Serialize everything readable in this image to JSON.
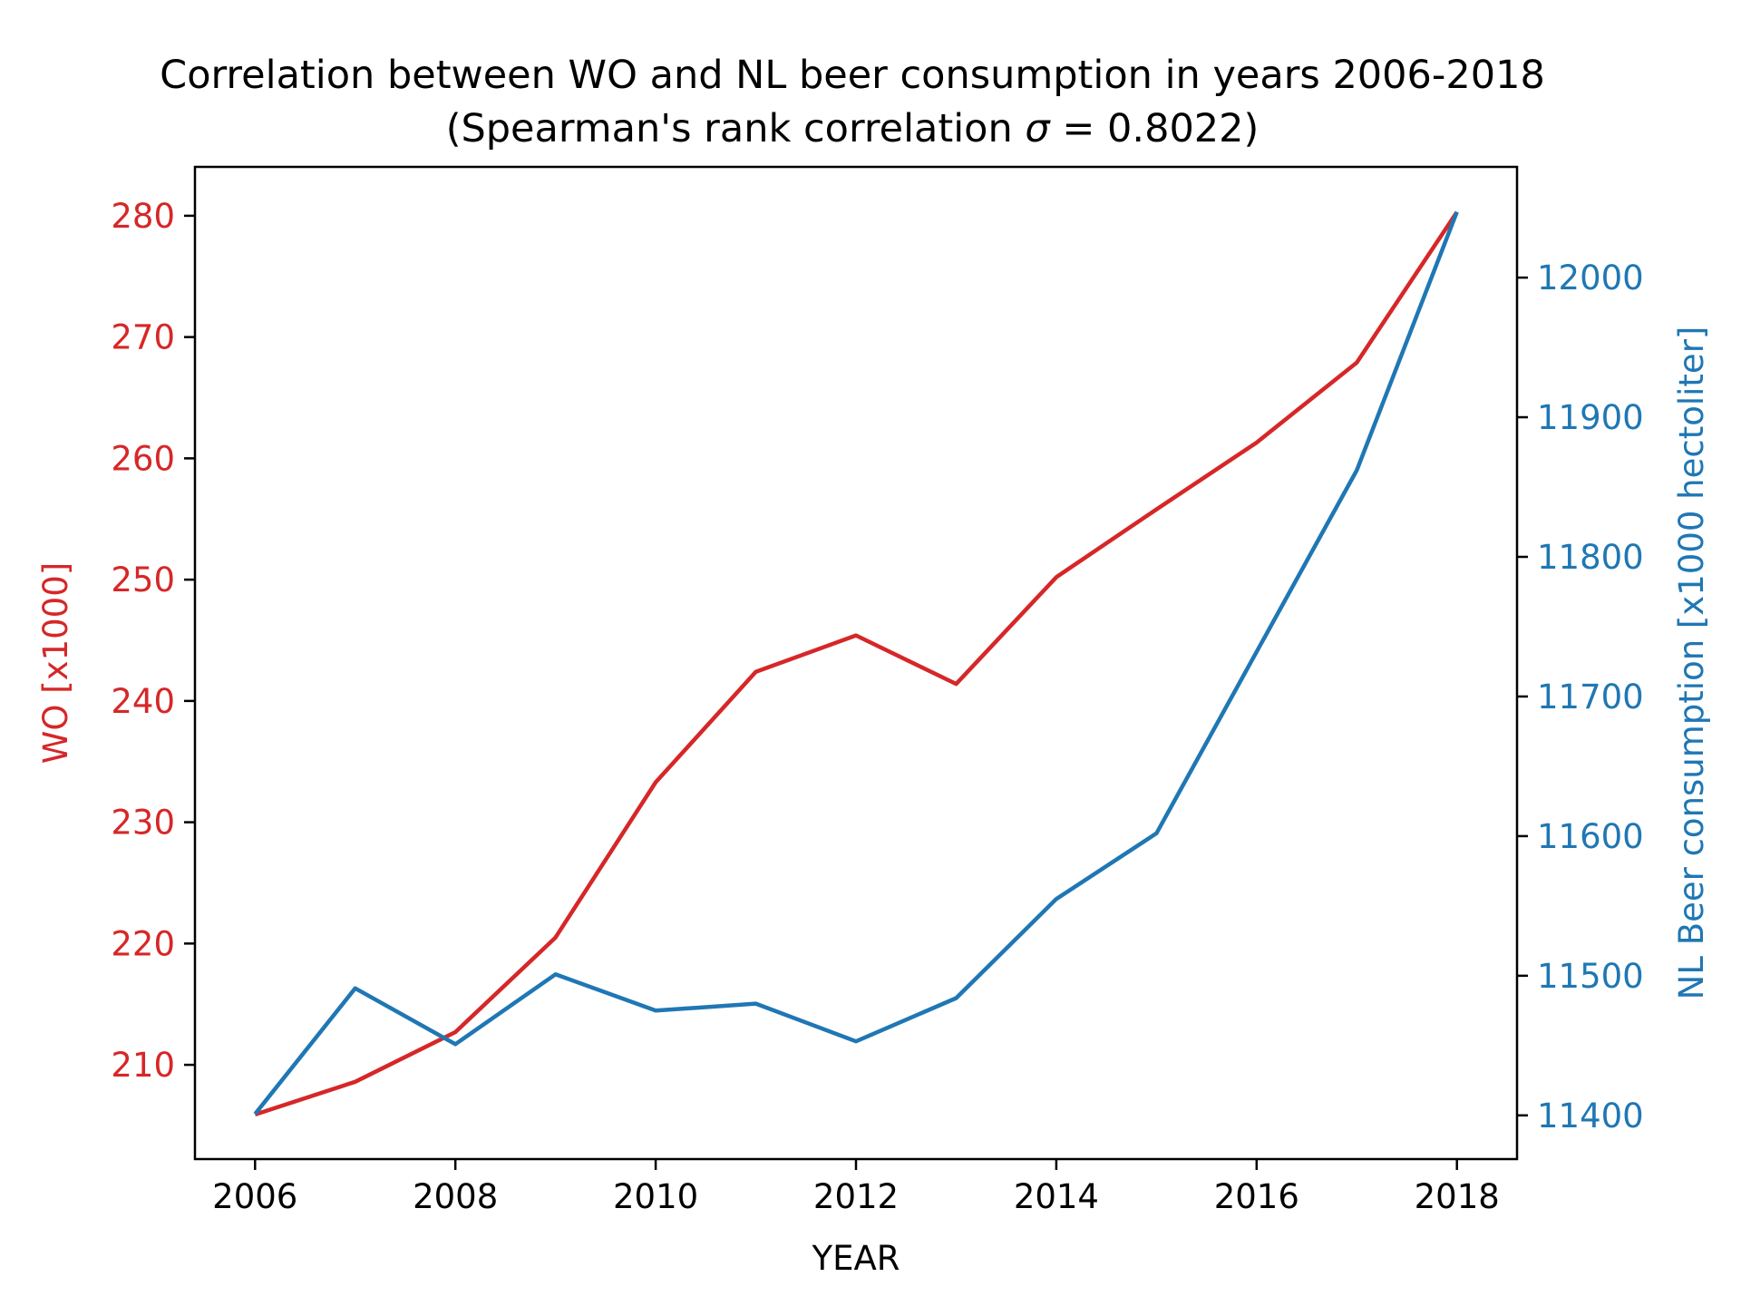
{
  "chart_data": {
    "type": "line",
    "title_line1": "Correlation between WO and NL beer consumption in years 2006-2018",
    "title_line2_prefix": "(Spearman's rank correlation ",
    "title_line2_symbol": "σ",
    "title_line2_suffix": " = 0.8022)",
    "xlabel": "YEAR",
    "x": [
      2006,
      2007,
      2008,
      2009,
      2010,
      2011,
      2012,
      2013,
      2014,
      2015,
      2016,
      2017,
      2018
    ],
    "x_ticks": [
      2006,
      2008,
      2010,
      2012,
      2014,
      2016,
      2018
    ],
    "grid": false,
    "series": [
      {
        "name": "WO [x1000]",
        "axis": "left",
        "color": "#d62728",
        "values": [
          205.9,
          208.6,
          212.7,
          220.5,
          233.3,
          242.4,
          245.4,
          241.4,
          250.2,
          255.8,
          261.3,
          267.9,
          280.3
        ]
      },
      {
        "name": "NL Beer consumption [x1000 hectoliter]",
        "axis": "right",
        "color": "#1f77b4",
        "values": [
          11401,
          11491,
          11451,
          11501,
          11475,
          11480,
          11453,
          11484,
          11555,
          11602,
          11732,
          11862,
          12047
        ]
      }
    ],
    "y_left": {
      "label": "WO [x1000]",
      "color": "#d62728",
      "ticks": [
        210,
        220,
        230,
        240,
        250,
        260,
        270,
        280
      ],
      "range": [
        202.23,
        284.03
      ]
    },
    "y_right": {
      "label": "NL Beer consumption [x1000 hectoliter]",
      "color": "#1f77b4",
      "ticks": [
        11400,
        11500,
        11600,
        11700,
        11800,
        11900,
        12000
      ],
      "range": [
        11368.7,
        12079.3
      ]
    },
    "x_range": [
      2005.4,
      2018.6
    ]
  }
}
